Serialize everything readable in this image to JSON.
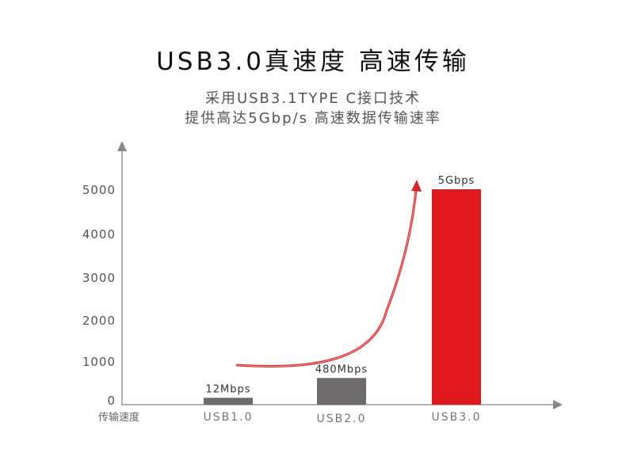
{
  "header": {
    "title": "USB3.0真速度 高速传输",
    "subtitle_line1": "采用USB3.1TYPE C接口技术",
    "subtitle_line2": "提供高达5Gbp/s 高速数据传输速率"
  },
  "colors": {
    "bar_gray": "#6e6b6c",
    "bar_red": "#e0191f",
    "axis": "#999999",
    "curve": "#d8262a"
  },
  "chart_data": {
    "type": "bar",
    "xlabel": "传输速度",
    "ylabel": "",
    "ylim": [
      0,
      5000
    ],
    "yticks": [
      "0",
      "1000",
      "2000",
      "3000",
      "4000",
      "5000"
    ],
    "categories": [
      "USB1.0",
      "USB2.0",
      "USB3.0"
    ],
    "values": [
      12,
      480,
      5000
    ],
    "data_labels": [
      "12Mbps",
      "480Mbps",
      "5Gbps"
    ],
    "bar_colors": [
      "#6e6b6c",
      "#6e6b6c",
      "#e0191f"
    ],
    "visual_heights": [
      160,
      620,
      5000
    ],
    "grid": false,
    "annotations": [
      "red upward-curving arrow from USB1.0 toward USB3.0"
    ]
  }
}
